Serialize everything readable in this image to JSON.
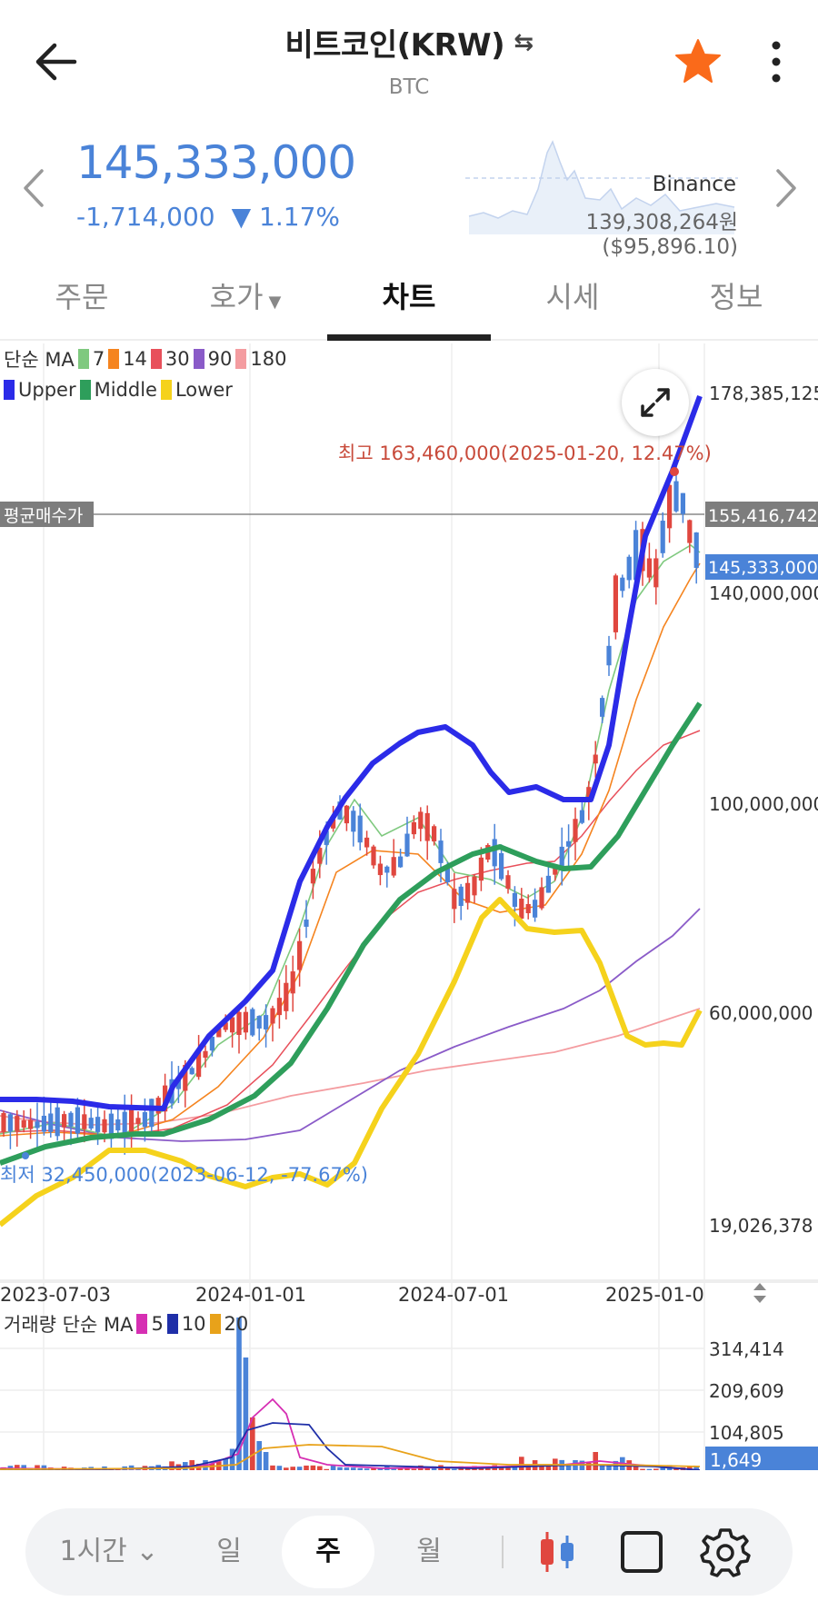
{
  "header": {
    "title": "비트코인(KRW)",
    "swap_icon": "⇆",
    "subtitle": "BTC",
    "accent_star": "#fa6a1a"
  },
  "price": {
    "current": "145,333,000",
    "change": "-1,714,000",
    "change_pct": "▼ 1.17%",
    "exchange": "Binance",
    "reference": "139,308,264원($95,896.10)",
    "color": "#4a83d8"
  },
  "tabs": [
    {
      "label": "주문"
    },
    {
      "label": "호가",
      "caret": "▼"
    },
    {
      "label": "차트",
      "active": true
    },
    {
      "label": "시세"
    },
    {
      "label": "정보"
    }
  ],
  "legends": {
    "ma_title": "단순 MA",
    "ma_items": [
      {
        "label": "7",
        "color": "#7fc97f"
      },
      {
        "label": "14",
        "color": "#f5841f"
      },
      {
        "label": "30",
        "color": "#e8505b"
      },
      {
        "label": "90",
        "color": "#8a5bc8"
      },
      {
        "label": "180",
        "color": "#f49ca0"
      }
    ],
    "bb_items": [
      {
        "label": "Upper",
        "color": "#2b2be8"
      },
      {
        "label": "Middle",
        "color": "#2e9e5b"
      },
      {
        "label": "Lower",
        "color": "#f5d21c"
      }
    ],
    "vol_title": "거래량 단순 MA",
    "vol_items": [
      {
        "label": "5",
        "color": "#d62fb3"
      },
      {
        "label": "10",
        "color": "#1f2fa8"
      },
      {
        "label": "20",
        "color": "#e8a21a"
      }
    ]
  },
  "annotations": {
    "high": "최고 163,460,000(2025-01-20, 12.47%)",
    "low": "최저 32,450,000(2023-06-12, -77.67%)",
    "avg_label": "평균매수가",
    "avg_value": "155,416,742"
  },
  "chart_data": {
    "type": "candlestick",
    "interval": "weekly",
    "price_axis": [
      "178,385,125",
      "140,000,000",
      "100,000,000",
      "60,000,000",
      "19,026,378"
    ],
    "current_price_label": "145,333,000",
    "x_ticks": [
      "2023-07-03",
      "2024-01-01",
      "2024-07-01",
      "2025-01-0"
    ],
    "volume_axis": [
      "314,414",
      "209,609",
      "104,805"
    ],
    "current_volume_label": "1,649",
    "colors": {
      "up": "#e0473f",
      "down": "#4a83d8"
    }
  },
  "bottom_bar": {
    "interval": "1시간",
    "interval_caret": "⌄",
    "periods": [
      "일",
      "주",
      "월"
    ],
    "selected": "주"
  }
}
